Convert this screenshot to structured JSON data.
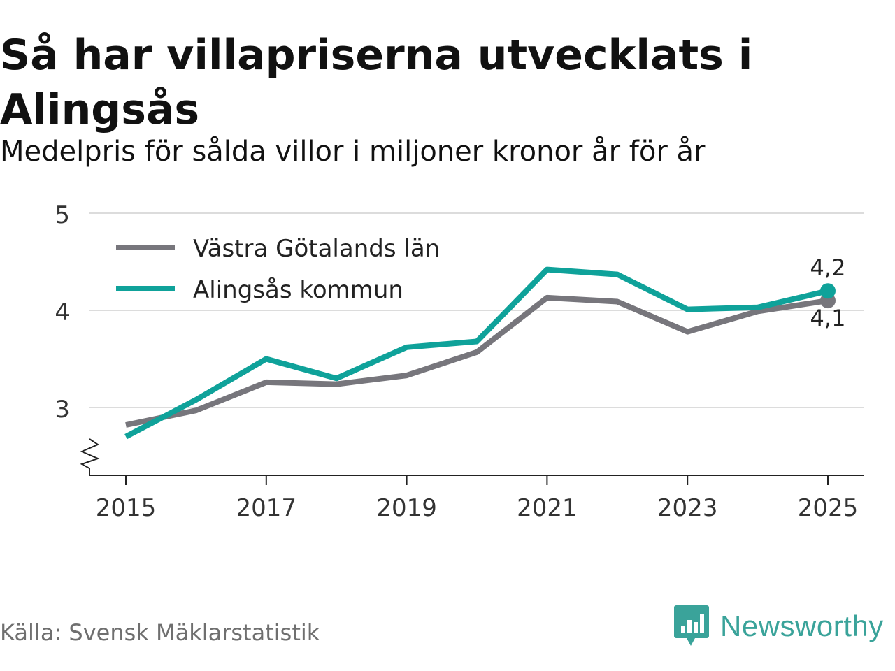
{
  "title": "Så har villapriserna utvecklats i Alingsås",
  "subtitle": "Medelpris för sålda villor i miljoner kronor år för år",
  "source": "Källa: Svensk Mäklarstatistik",
  "brand": {
    "name": "Newsworthy",
    "color": "#3aa39a"
  },
  "chart_data": {
    "type": "line",
    "title": "Så har villapriserna utvecklats i Alingsås",
    "subtitle": "Medelpris för sålda villor i miljoner kronor år för år",
    "xlabel": "",
    "ylabel": "",
    "x": [
      2015,
      2016,
      2017,
      2018,
      2019,
      2020,
      2021,
      2022,
      2023,
      2024,
      2025
    ],
    "xticks": [
      "2015",
      "2017",
      "2019",
      "2021",
      "2023",
      "2025"
    ],
    "yticks": [
      "3",
      "4",
      "5"
    ],
    "ylim": [
      2.3,
      5.0
    ],
    "ybreak": true,
    "grid": true,
    "legend_position": "top-left",
    "series": [
      {
        "name": "Västra Götalands län",
        "color": "#77767c",
        "values": [
          2.82,
          2.97,
          3.26,
          3.24,
          3.33,
          3.57,
          4.13,
          4.09,
          3.78,
          3.99,
          4.1
        ],
        "end_label": "4,1"
      },
      {
        "name": "Alingsås kommun",
        "color": "#0fa29a",
        "values": [
          2.7,
          3.08,
          3.5,
          3.3,
          3.62,
          3.68,
          4.42,
          4.37,
          4.01,
          4.03,
          4.2
        ],
        "end_label": "4,2"
      }
    ]
  }
}
